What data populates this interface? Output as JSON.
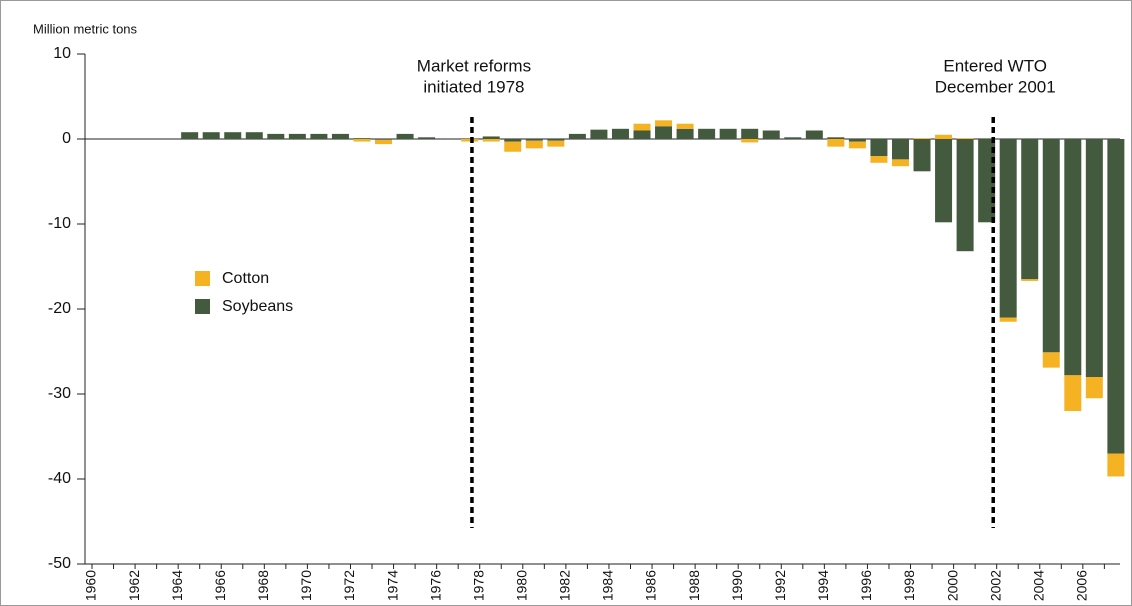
{
  "chart_data": {
    "type": "stacked_bar",
    "y_axis_label": "Million metric tons",
    "categories": [
      "1960",
      null,
      "1962",
      null,
      "1964",
      null,
      "1966",
      null,
      "1968",
      null,
      "1970",
      null,
      "1972",
      null,
      "1974",
      null,
      "1976",
      null,
      "1978",
      null,
      "1980",
      null,
      "1982",
      null,
      "1984",
      null,
      "1986",
      null,
      "1988",
      null,
      "1990",
      null,
      "1992",
      null,
      "1994",
      null,
      "1996",
      null,
      "1998",
      null,
      "2000",
      null,
      "2002",
      null,
      "2004",
      null,
      "2006",
      null
    ],
    "series": [
      {
        "name": "Soybeans",
        "color": "#435a3e",
        "values": [
          0,
          0,
          0,
          0,
          0.8,
          0.8,
          0.8,
          0.8,
          0.6,
          0.6,
          0.6,
          0.6,
          0.1,
          -0.1,
          0.6,
          0.2,
          0,
          0,
          0.3,
          -0.3,
          -0.2,
          -0.2,
          0.6,
          1.1,
          1.2,
          1.0,
          1.5,
          1.2,
          1.2,
          1.2,
          1.2,
          1.0,
          0.2,
          1.0,
          0.2,
          -0.3,
          -2.0,
          -2.4,
          -3.8,
          -9.8,
          -13.2,
          -9.8,
          -21.0,
          -16.5,
          -25.1,
          -27.8,
          -28.0,
          -37.0
        ]
      },
      {
        "name": "Cotton",
        "color": "#f5b324",
        "values": [
          0,
          0,
          0,
          0,
          0,
          0,
          0,
          0,
          0,
          0,
          0,
          0,
          -0.3,
          -0.5,
          0,
          0,
          0,
          -0.3,
          -0.3,
          -1.2,
          -0.9,
          -0.7,
          0,
          0,
          0,
          0.8,
          0.7,
          0.6,
          0,
          0,
          -0.4,
          0,
          0,
          0,
          -0.9,
          -0.8,
          -0.8,
          -0.8,
          0.1,
          0.5,
          0.1,
          0,
          -0.5,
          -0.2,
          -1.8,
          -4.2,
          -2.5,
          -2.7
        ]
      }
    ],
    "ylim": [
      -50,
      10
    ],
    "yticks": [
      10,
      0,
      -10,
      -20,
      -30,
      -40,
      -50
    ],
    "annotations": [
      {
        "lines": [
          "Market reforms",
          "initiated 1978"
        ],
        "x": 1977.5
      },
      {
        "lines": [
          "Entered WTO",
          "December 2001"
        ],
        "x": 2001.7
      }
    ],
    "legend": "left"
  }
}
